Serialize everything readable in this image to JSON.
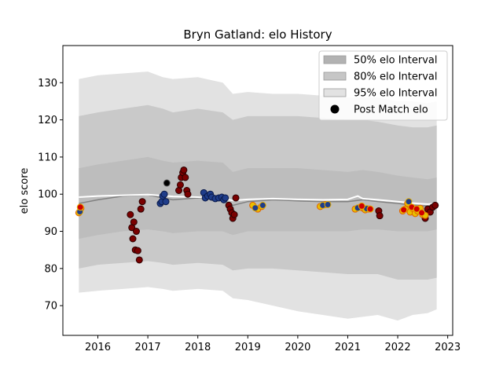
{
  "chart_data": {
    "type": "scatter",
    "title": "Bryn Gatland: elo History",
    "xlabel": "",
    "ylabel": "elo score",
    "xlim": [
      2015.3,
      2023.1
    ],
    "ylim": [
      62,
      140
    ],
    "x_ticks": [
      2016,
      2017,
      2018,
      2019,
      2020,
      2021,
      2022,
      2023
    ],
    "y_ticks": [
      70,
      80,
      90,
      100,
      110,
      120,
      130
    ],
    "grid": false,
    "legend": {
      "placement": "top-right",
      "entries": [
        {
          "label": "50% elo Interval",
          "kind": "band",
          "color": "#b2b2b2"
        },
        {
          "label": "80% elo Interval",
          "kind": "band",
          "color": "#c6c6c6"
        },
        {
          "label": "95% elo Interval",
          "kind": "band",
          "color": "#e2e2e2"
        },
        {
          "label": "Post Match elo",
          "kind": "marker",
          "color": "#000000"
        }
      ]
    },
    "bands": {
      "x": [
        2015.62,
        2016.0,
        2016.5,
        2017.0,
        2017.3,
        2017.5,
        2018.0,
        2018.5,
        2018.7,
        2019.0,
        2019.5,
        2020.0,
        2020.5,
        2021.0,
        2021.3,
        2021.6,
        2022.0,
        2022.3,
        2022.6,
        2022.78
      ],
      "median": [
        97.5,
        98.5,
        99.5,
        99.8,
        99.0,
        98.5,
        99.0,
        98.5,
        97.0,
        98.0,
        98.5,
        98.2,
        98.0,
        98.0,
        98.5,
        98.0,
        97.5,
        97.0,
        96.8,
        97.0
      ],
      "p25": [
        88,
        89,
        90,
        90.5,
        90,
        89.5,
        90,
        90,
        89,
        90,
        90,
        90,
        90,
        90,
        90.5,
        90.5,
        90,
        90,
        90,
        90.5
      ],
      "p75": [
        107,
        108,
        109,
        110,
        109,
        108.5,
        109,
        108.5,
        106,
        107,
        107,
        107,
        106.5,
        106,
        106.5,
        106,
        105,
        104.5,
        104,
        104.5
      ],
      "p10": [
        80,
        81,
        81.5,
        82,
        81.5,
        81,
        81.5,
        81,
        79.5,
        80,
        80,
        79.5,
        79,
        78.5,
        78.5,
        78.5,
        77,
        77,
        77,
        77.5
      ],
      "p90": [
        121,
        122,
        123,
        124,
        123,
        122,
        123,
        122,
        120,
        121,
        121,
        121,
        120.5,
        120,
        120,
        119.5,
        118.5,
        118,
        118,
        118.5
      ],
      "p025": [
        73.5,
        74,
        74.5,
        75,
        74.5,
        74,
        74.5,
        74,
        72,
        71.5,
        70,
        68.5,
        67.5,
        66.5,
        67,
        67.5,
        66,
        67.5,
        68,
        69
      ],
      "p975": [
        131,
        132,
        132.5,
        133,
        131.5,
        131,
        131.5,
        130,
        127,
        127.5,
        127,
        127,
        126.5,
        126,
        126,
        126,
        125,
        125,
        124.5,
        125
      ]
    },
    "trend_line": {
      "x": [
        2015.62,
        2016.0,
        2016.5,
        2017.0,
        2017.3,
        2017.5,
        2018.0,
        2018.5,
        2018.7,
        2019.0,
        2019.5,
        2020.0,
        2020.5,
        2021.0,
        2021.2,
        2021.3,
        2021.6,
        2022.0,
        2022.3,
        2022.6,
        2022.78
      ],
      "y": [
        99.2,
        99.5,
        99.7,
        99.9,
        99.6,
        99.4,
        99.2,
        98.8,
        98.3,
        98.6,
        98.8,
        98.6,
        98.5,
        98.6,
        99.5,
        98.8,
        98.5,
        98.0,
        97.6,
        97.3,
        97.5
      ]
    },
    "series": [
      {
        "fill": "#7a0000",
        "edge": "#2a0000",
        "x": [
          2016.65,
          2016.68,
          2016.7,
          2016.72,
          2016.75,
          2016.77,
          2016.8,
          2016.83,
          2016.86,
          2016.89,
          2017.62,
          2017.65,
          2017.67,
          2017.7,
          2017.72,
          2017.75,
          2017.78,
          2017.8,
          2018.62,
          2018.65,
          2018.68,
          2018.7,
          2018.73,
          2018.76,
          2021.62,
          2021.64,
          2022.55,
          2022.6,
          2022.65,
          2022.7,
          2022.75
        ],
        "y": [
          94.5,
          91,
          88,
          92.5,
          85,
          90,
          84.8,
          82.3,
          96,
          98,
          101,
          102.5,
          104.5,
          105.8,
          106.5,
          104.5,
          101,
          100,
          97,
          96,
          95,
          93.5,
          94.5,
          99,
          95.5,
          94.2,
          93.5,
          96,
          95.2,
          96.5,
          97
        ]
      },
      {
        "fill": "#1f3d8a",
        "edge": "#0a1a4a",
        "x": [
          2017.25,
          2017.28,
          2017.3,
          2017.33,
          2017.36,
          2018.12,
          2018.15,
          2018.2,
          2018.25,
          2018.28,
          2018.35,
          2018.42,
          2018.48,
          2018.52,
          2018.55
        ],
        "y": [
          97.5,
          98,
          99.5,
          100,
          98,
          100.4,
          99,
          99.5,
          100,
          99.2,
          98.8,
          99,
          99.2,
          98.5,
          99
        ]
      },
      {
        "fill": "#000000",
        "edge": "#555555",
        "x": [
          2017.38
        ],
        "y": [
          103
        ]
      },
      {
        "fill": "#e8c000",
        "edge": "#e06000",
        "x": [
          2015.62,
          2015.66,
          2019.1,
          2019.2,
          2019.28,
          2020.45,
          2020.55,
          2021.15,
          2021.25,
          2021.3,
          2021.35,
          2021.42,
          2022.1,
          2022.15,
          2022.2,
          2022.25,
          2022.3,
          2022.35,
          2022.4,
          2022.45,
          2022.5,
          2022.55
        ],
        "y": [
          95,
          96.2,
          97,
          96,
          96.7,
          96.7,
          97.2,
          96,
          96.5,
          96.3,
          95.8,
          96,
          95.5,
          96,
          97.5,
          95.2,
          96.2,
          94.8,
          95.5,
          96.2,
          94.5,
          94.3
        ]
      },
      {
        "fill": "#1f3d8a",
        "edge": "#e8b000",
        "x": [
          2015.64,
          2019.15,
          2019.3,
          2020.5,
          2020.6,
          2021.2,
          2021.38,
          2022.22
        ],
        "y": [
          95.3,
          96.3,
          97,
          97,
          97.2,
          96.3,
          96.1,
          98
        ]
      },
      {
        "fill": "#d00000",
        "edge": "#e8b000",
        "x": [
          2015.65,
          2021.28,
          2021.45,
          2022.12,
          2022.28,
          2022.38,
          2022.48
        ],
        "y": [
          96.5,
          96.8,
          96,
          95.8,
          96.5,
          96,
          95
        ]
      }
    ]
  }
}
